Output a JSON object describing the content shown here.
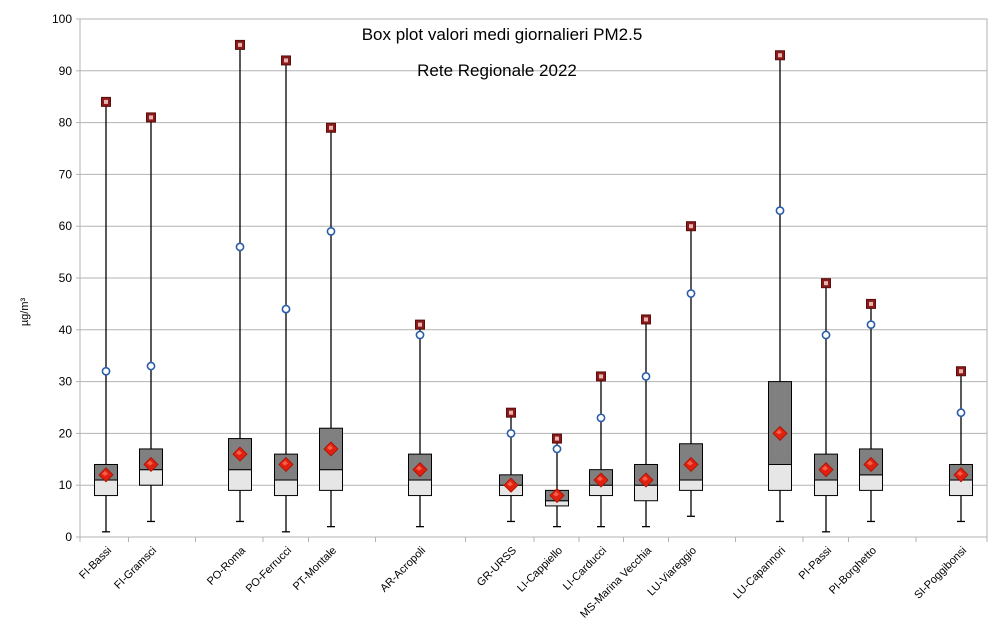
{
  "chart_data": {
    "type": "boxplot",
    "title": "Box plot valori medi giornalieri PM2.5",
    "subtitle": "Rete Regionale 2022",
    "ylabel": "µg/m³",
    "xlabel": "",
    "ylim": [
      0,
      100
    ],
    "yticks": [
      0,
      10,
      20,
      30,
      40,
      50,
      60,
      70,
      80,
      90,
      100
    ],
    "grid": true,
    "legend": "none",
    "series": [
      {
        "name": "FI-Bassi",
        "min": 1,
        "q1": 8,
        "median": 11,
        "q3": 14,
        "max": 84,
        "mean": 12,
        "p98": 32
      },
      {
        "name": "FI-Gramsci",
        "min": 3,
        "q1": 10,
        "median": 13,
        "q3": 17,
        "max": 81,
        "mean": 14,
        "p98": 33
      },
      {
        "name": "PO-Roma",
        "min": 3,
        "q1": 9,
        "median": 13,
        "q3": 19,
        "max": 95,
        "mean": 16,
        "p98": 56
      },
      {
        "name": "PO-Ferrucci",
        "min": 1,
        "q1": 8,
        "median": 11,
        "q3": 16,
        "max": 92,
        "mean": 14,
        "p98": 44
      },
      {
        "name": "PT-Montale",
        "min": 2,
        "q1": 9,
        "median": 13,
        "q3": 21,
        "max": 79,
        "mean": 17,
        "p98": 59
      },
      {
        "name": "AR-Acropoli",
        "min": 2,
        "q1": 8,
        "median": 11,
        "q3": 16,
        "max": 41,
        "mean": 13,
        "p98": 39
      },
      {
        "name": "GR-URSS",
        "min": 3,
        "q1": 8,
        "median": 10,
        "q3": 12,
        "max": 24,
        "mean": 10,
        "p98": 20
      },
      {
        "name": "LI-Cappiello",
        "min": 2,
        "q1": 6,
        "median": 7,
        "q3": 9,
        "max": 19,
        "mean": 8,
        "p98": 17
      },
      {
        "name": "LI-Carducci",
        "min": 2,
        "q1": 8,
        "median": 10,
        "q3": 13,
        "max": 31,
        "mean": 11,
        "p98": 23
      },
      {
        "name": "MS-Marina Vecchia",
        "min": 2,
        "q1": 7,
        "median": 10,
        "q3": 14,
        "max": 42,
        "mean": 11,
        "p98": 31
      },
      {
        "name": "LU-Viareggio",
        "min": 4,
        "q1": 9,
        "median": 11,
        "q3": 18,
        "max": 60,
        "mean": 14,
        "p98": 47
      },
      {
        "name": "LU-Capannori",
        "min": 3,
        "q1": 9,
        "median": 14,
        "q3": 30,
        "max": 93,
        "mean": 20,
        "p98": 63
      },
      {
        "name": "PI-Passi",
        "min": 1,
        "q1": 8,
        "median": 11,
        "q3": 16,
        "max": 49,
        "mean": 13,
        "p98": 39
      },
      {
        "name": "PI-Borghetto",
        "min": 3,
        "q1": 9,
        "median": 12,
        "q3": 17,
        "max": 45,
        "mean": 14,
        "p98": 41
      },
      {
        "name": "SI-Poggibonsi",
        "min": 3,
        "q1": 8,
        "median": 11,
        "q3": 14,
        "max": 32,
        "mean": 12,
        "p98": 24
      }
    ]
  }
}
